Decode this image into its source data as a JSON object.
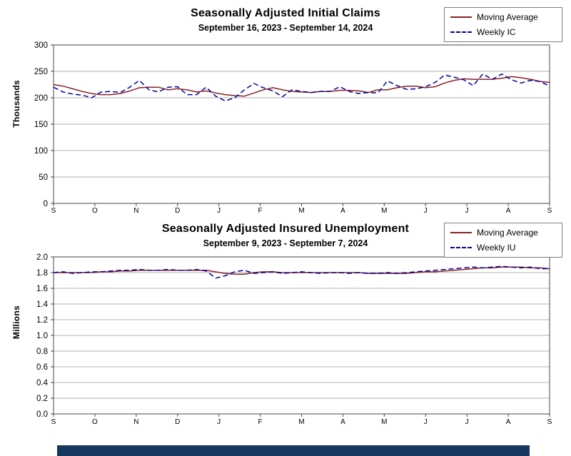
{
  "page": {
    "background": "#ffffff",
    "footer_bar_color": "#17375e",
    "grid_color": "#b3b3b3",
    "axis_color": "#444444"
  },
  "chart_data": [
    {
      "type": "line",
      "title": "Seasonally Adjusted Initial Claims",
      "subtitle": "September 16, 2023 - September 14, 2024",
      "ylabel": "Thousands",
      "xlabel": "",
      "ylim": [
        0,
        300
      ],
      "ytick_step": 50,
      "ytick_decimals": 0,
      "grid": true,
      "legend_position": "top-right",
      "x_tick_labels": [
        "S",
        "O",
        "N",
        "D",
        "J",
        "F",
        "M",
        "A",
        "M",
        "J",
        "J",
        "A",
        "S"
      ],
      "series": [
        {
          "name": "Moving Average",
          "color": "#8b2222",
          "style": "solid",
          "values": [
            225,
            222,
            217,
            212,
            208,
            206,
            206,
            208,
            213,
            219,
            220,
            220,
            215,
            217,
            215,
            211,
            213,
            209,
            206,
            204,
            203,
            209,
            215,
            219,
            215,
            212,
            211,
            210,
            212,
            212,
            214,
            214,
            213,
            210,
            215,
            215,
            219,
            222,
            222,
            219,
            221,
            228,
            233,
            236,
            235,
            235,
            235,
            237,
            240,
            238,
            235,
            231,
            229
          ]
        },
        {
          "name": "Weekly IC",
          "color": "#0000a0",
          "style": "dashed",
          "values": [
            220,
            211,
            207,
            205,
            200,
            211,
            212,
            210,
            220,
            233,
            215,
            211,
            220,
            221,
            206,
            206,
            220,
            203,
            194,
            200,
            215,
            227,
            219,
            213,
            202,
            215,
            212,
            210,
            212,
            212,
            221,
            212,
            208,
            210,
            209,
            232,
            223,
            216,
            217,
            221,
            229,
            243,
            239,
            234,
            223,
            245,
            235,
            245,
            234,
            228,
            233,
            231,
            222
          ]
        }
      ]
    },
    {
      "type": "line",
      "title": "Seasonally Adjusted Insured Unemployment",
      "subtitle": "September 9, 2023 - September 7, 2024",
      "ylabel": "Millions",
      "xlabel": "",
      "ylim": [
        0,
        2.0
      ],
      "ytick_step": 0.2,
      "ytick_decimals": 1,
      "grid": true,
      "legend_position": "top-right",
      "x_tick_labels": [
        "S",
        "O",
        "N",
        "D",
        "J",
        "F",
        "M",
        "A",
        "M",
        "J",
        "J",
        "A",
        "S"
      ],
      "series": [
        {
          "name": "Moving Average",
          "color": "#8b2222",
          "style": "solid",
          "values": [
            1.8,
            1.8,
            1.8,
            1.8,
            1.8,
            1.81,
            1.81,
            1.82,
            1.82,
            1.83,
            1.83,
            1.83,
            1.83,
            1.83,
            1.83,
            1.83,
            1.83,
            1.81,
            1.79,
            1.78,
            1.78,
            1.8,
            1.81,
            1.81,
            1.8,
            1.8,
            1.8,
            1.8,
            1.8,
            1.8,
            1.8,
            1.8,
            1.8,
            1.79,
            1.79,
            1.79,
            1.79,
            1.79,
            1.8,
            1.81,
            1.81,
            1.82,
            1.83,
            1.84,
            1.85,
            1.86,
            1.86,
            1.87,
            1.87,
            1.87,
            1.86,
            1.86,
            1.85
          ]
        },
        {
          "name": "Weekly IU",
          "color": "#0000a0",
          "style": "dashed",
          "values": [
            1.8,
            1.81,
            1.79,
            1.8,
            1.81,
            1.81,
            1.82,
            1.83,
            1.83,
            1.84,
            1.83,
            1.83,
            1.84,
            1.83,
            1.83,
            1.84,
            1.82,
            1.73,
            1.76,
            1.81,
            1.83,
            1.79,
            1.8,
            1.81,
            1.79,
            1.8,
            1.81,
            1.8,
            1.79,
            1.8,
            1.8,
            1.79,
            1.8,
            1.79,
            1.79,
            1.8,
            1.79,
            1.8,
            1.81,
            1.82,
            1.83,
            1.84,
            1.85,
            1.86,
            1.87,
            1.86,
            1.87,
            1.88,
            1.87,
            1.86,
            1.87,
            1.85,
            1.85
          ]
        }
      ]
    }
  ]
}
